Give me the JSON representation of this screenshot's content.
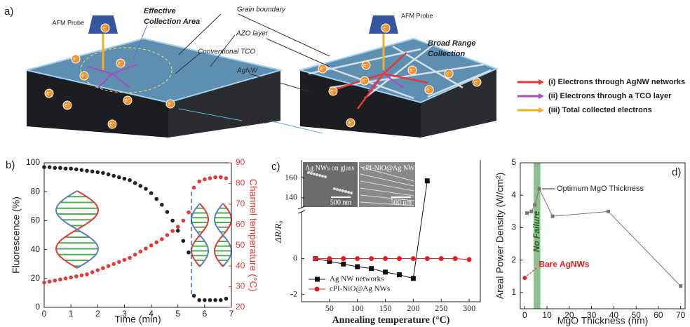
{
  "panel_a": {
    "label": "a)",
    "probe_left": "AFM Probe",
    "probe_right": "AFM Probe",
    "effective": [
      "Effective",
      "Collection Area"
    ],
    "broad": [
      "Broad Range",
      "Collection"
    ],
    "grain_boundary": "Grain boundary",
    "azo": "AZO layer",
    "tco": "Conventional TCO",
    "agnw": "AgNW",
    "cigs": "CIGS",
    "electron": "e⁻",
    "legend": [
      {
        "text": "(i) Electrons through AgNW networks",
        "color": "#e53935"
      },
      {
        "text": "(ii) Electrons through a TCO layer",
        "color": "#a64dc4"
      },
      {
        "text": "(iii) Total collected electrons",
        "color": "#f2b01e"
      }
    ]
  },
  "chart_data": [
    {
      "type": "line",
      "title": "b)",
      "xlabel": "Time (min)",
      "ylabel": "Fluorescence (%)",
      "y2label": "Channel temperature (°C)",
      "x": [
        0,
        0.2,
        0.4,
        0.6,
        0.8,
        1,
        1.2,
        1.4,
        1.6,
        1.8,
        2,
        2.2,
        2.4,
        2.6,
        2.8,
        3,
        3.2,
        3.4,
        3.6,
        3.8,
        4,
        4.2,
        4.4,
        4.6,
        4.8,
        5,
        5.2,
        5.4,
        5.6,
        5.8,
        6,
        6.2,
        6.4,
        6.6,
        6.8
      ],
      "xlim": [
        0,
        7
      ],
      "xticks": [
        0,
        1,
        2,
        3,
        4,
        5,
        6,
        7
      ],
      "ylim": [
        0,
        100
      ],
      "yticks": [
        0,
        20,
        40,
        60,
        80,
        100
      ],
      "y2lim": [
        20,
        90
      ],
      "y2ticks": [
        20,
        30,
        40,
        50,
        60,
        70,
        80,
        90
      ],
      "series": [
        {
          "color": "#222222",
          "values": [
            97,
            97,
            96.5,
            96.5,
            96,
            96,
            95.5,
            95,
            94.5,
            94,
            93.5,
            93,
            92,
            91,
            90,
            89,
            88,
            86,
            84,
            82,
            79,
            75,
            71,
            66,
            60,
            53,
            46,
            38,
            8,
            5,
            5,
            5,
            5,
            5,
            6
          ]
        },
        {
          "color": "#e53935",
          "axis": "y2",
          "values": [
            32,
            32.5,
            33,
            33.5,
            34,
            34.5,
            35,
            35.5,
            36,
            37,
            38,
            39,
            40,
            41,
            42,
            43,
            44,
            45.5,
            47,
            48.5,
            50,
            51.5,
            53,
            55,
            57,
            59,
            62,
            66,
            78,
            81,
            82,
            82.5,
            83,
            83,
            82.5
          ]
        }
      ]
    },
    {
      "type": "line",
      "title": "c)",
      "xlabel": "Annealing temperature (°C)",
      "ylabel": "ΔR/R₀",
      "xlim": [
        0,
        320
      ],
      "xticks": [
        50,
        100,
        150,
        200,
        250,
        300
      ],
      "ylim": [
        -2.4,
        2.6
      ],
      "yticks": [
        -2,
        0
      ],
      "y_break": {
        "lim": [
          130,
          178
        ],
        "ticks": [
          140,
          160
        ]
      },
      "inset_labels": [
        "Ag NWs on glass",
        "cPI-NiO@Ag NWs"
      ],
      "scale_bars": [
        "500 nm",
        "500 nm"
      ],
      "series": [
        {
          "name": "Ag NW networks",
          "color": "#111111",
          "marker": "square",
          "x": [
            25,
            50,
            75,
            100,
            125,
            150,
            175,
            200,
            225
          ],
          "values": [
            0,
            -0.15,
            -0.3,
            -0.45,
            -0.55,
            -0.75,
            -0.9,
            -1.1,
            157
          ]
        },
        {
          "name": "cPI-NiO@Ag NWs",
          "color": "#e02020",
          "marker": "circle",
          "x": [
            25,
            50,
            75,
            100,
            125,
            150,
            175,
            200,
            225,
            250,
            275,
            300
          ],
          "values": [
            0,
            0,
            0,
            0,
            0,
            0,
            0,
            0,
            0,
            0,
            0,
            -0.05
          ]
        }
      ]
    },
    {
      "type": "line",
      "title": "d)",
      "xlabel": "MgO Thickness (nm)",
      "ylabel": "Areal Power Density (W/cm²)",
      "xlim": [
        -2,
        72
      ],
      "xticks": [
        0,
        10,
        20,
        30,
        40,
        50,
        60,
        70
      ],
      "ylim": [
        0.5,
        5
      ],
      "yticks": [
        1,
        2,
        3,
        4,
        5
      ],
      "band": {
        "label": "No Failure",
        "x": [
          4,
          7
        ],
        "color": "#8fbf8f"
      },
      "annotation": "Optimum MgO Thickness",
      "series": [
        {
          "color": "#777777",
          "x": [
            1,
            3,
            4.5,
            6.5,
            12.5,
            37.5,
            70
          ],
          "values": [
            3.45,
            3.5,
            3.7,
            4.2,
            3.35,
            3.5,
            1.2
          ]
        },
        {
          "name": "Bare AgNWs",
          "color": "#e02020",
          "x": [
            0
          ],
          "values": [
            1.45
          ]
        }
      ]
    }
  ]
}
